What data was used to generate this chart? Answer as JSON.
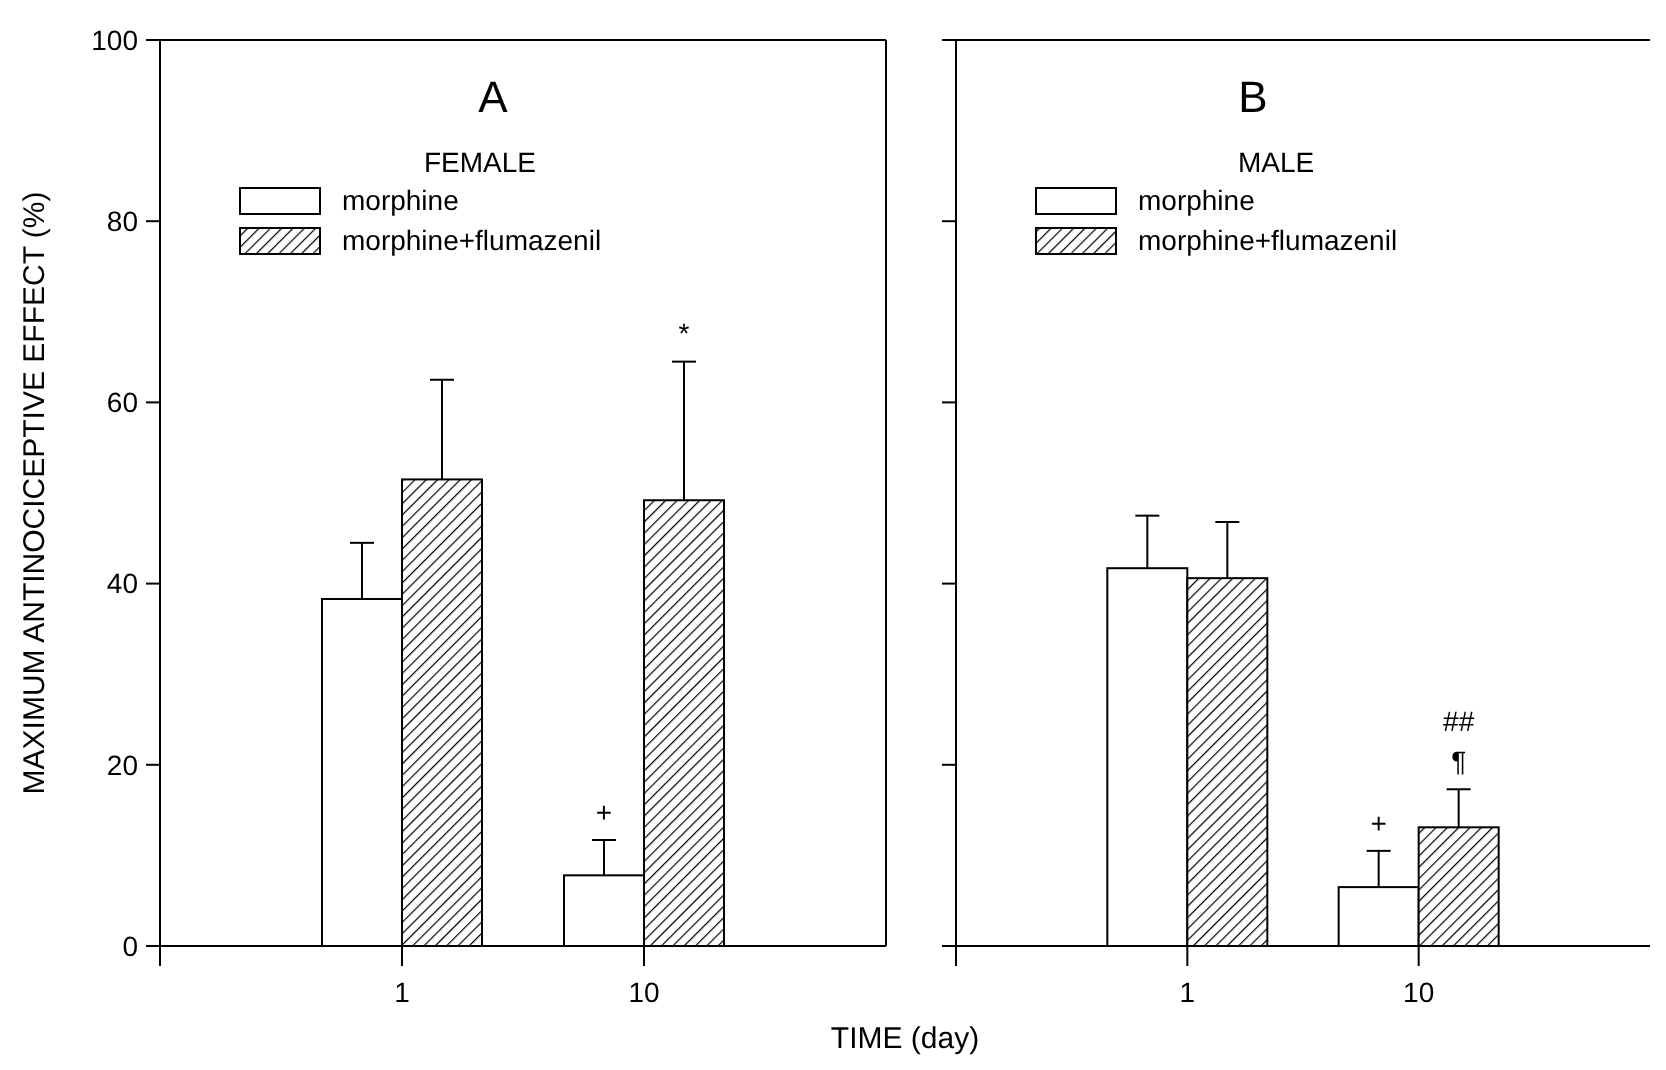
{
  "chart_data": [
    {
      "type": "bar",
      "title": "A",
      "legend_title": "FEMALE",
      "xlabel": "TIME (day)",
      "ylabel": "MAXIMUM ANTINOCICEPTIVE EFFECT (%)",
      "categories": [
        "1",
        "10"
      ],
      "series": [
        {
          "name": "morphine",
          "color": "#ffffff",
          "values": [
            38.3,
            7.8
          ],
          "errors": [
            6.2,
            3.9
          ]
        },
        {
          "name": "morphine+flumazenil",
          "color": "#000000",
          "values": [
            51.5,
            49.2
          ],
          "errors": [
            11,
            15.3
          ]
        }
      ],
      "ylim": [
        0,
        100
      ],
      "yticks": [
        0,
        20,
        40,
        60,
        80,
        100
      ],
      "legend": "top left",
      "annotations": [
        "+",
        "*"
      ]
    },
    {
      "type": "bar",
      "title": "B",
      "legend_title": "MALE",
      "categories": [
        "1",
        "10"
      ],
      "series": [
        {
          "name": "morphine",
          "color": "#ffffff",
          "values": [
            41.7,
            6.5
          ],
          "errors": [
            5.8,
            4
          ]
        },
        {
          "name": "morphine+flumazenil",
          "color": "#000000",
          "values": [
            40.6,
            13.1
          ],
          "errors": [
            6.2,
            4.2
          ]
        }
      ],
      "ylim": [
        0,
        100
      ],
      "yticks": [
        0,
        20,
        40,
        60,
        80,
        100
      ],
      "tick_labels": "x",
      "legend": "top left",
      "annotations": [
        "+",
        "¶",
        "##"
      ]
    }
  ]
}
